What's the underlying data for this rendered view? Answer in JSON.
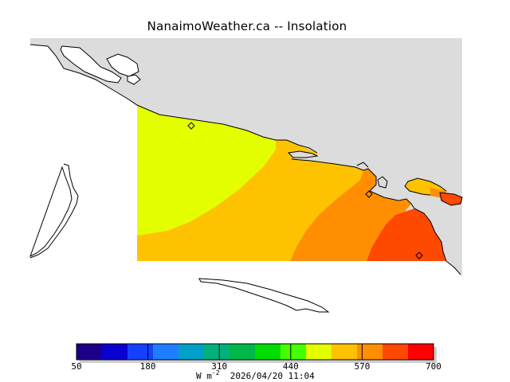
{
  "title": "NanaimoWeather.ca -- Insolation",
  "colorbar": {
    "ticks": [
      "50",
      "180",
      "310",
      "440",
      "570",
      "700"
    ],
    "colors": [
      "#1b0089",
      "#0a00d2",
      "#1540ff",
      "#1f7eff",
      "#00a0c8",
      "#00b27a",
      "#00b84a",
      "#00dd00",
      "#44ff00",
      "#e4ff00",
      "#ffc200",
      "#ff8f00",
      "#ff4800",
      "#ff0000"
    ],
    "range": [
      50,
      700
    ]
  },
  "units": {
    "prefix": "W m",
    "exponent": "-2",
    "timestamp": "2026/04/20 11:04"
  },
  "map": {
    "field_colors": {
      "yellow_green": "#e4ff00",
      "amber": "#ffc200",
      "orange": "#ff8f00",
      "red_orange": "#ff4800",
      "land_gray": "#dcdcdc"
    },
    "station_marker_icon": "diamond-icon"
  }
}
